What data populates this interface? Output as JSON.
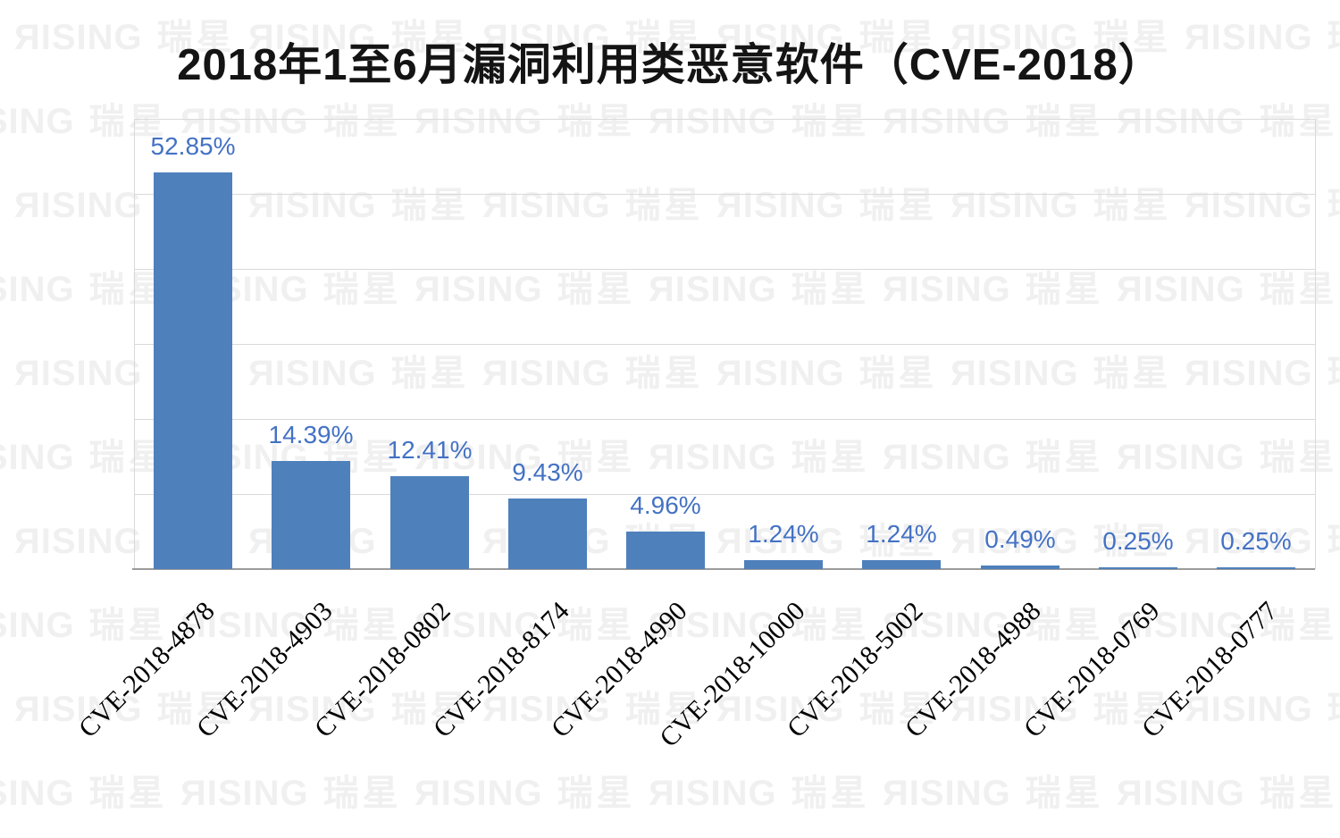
{
  "chart_data": {
    "type": "bar",
    "title": "2018年1至6月漏洞利用类恶意软件（CVE-2018）",
    "categories": [
      "CVE-2018-4878",
      "CVE-2018-4903",
      "CVE-2018-0802",
      "CVE-2018-8174",
      "CVE-2018-4990",
      "CVE-2018-10000",
      "CVE-2018-5002",
      "CVE-2018-4988",
      "CVE-2018-0769",
      "CVE-2018-0777"
    ],
    "values": [
      52.85,
      14.39,
      12.41,
      9.43,
      4.96,
      1.24,
      1.24,
      0.49,
      0.25,
      0.25
    ],
    "data_labels": [
      "52.85%",
      "14.39%",
      "12.41%",
      "9.43%",
      "4.96%",
      "1.24%",
      "1.24%",
      "0.49%",
      "0.25%",
      "0.25%"
    ],
    "xlabel": "",
    "ylabel": "",
    "ylim": [
      0,
      60
    ],
    "gridline_step": 10,
    "grid": true,
    "legend": "none",
    "bar_color": "#4E80BC",
    "label_color": "#4472C4",
    "gridline_color": "#d9d9d9",
    "axis_line_color": "#9b9b9b",
    "watermark_text": "RISING 瑞星",
    "watermark_color": "#f0f0f0"
  }
}
